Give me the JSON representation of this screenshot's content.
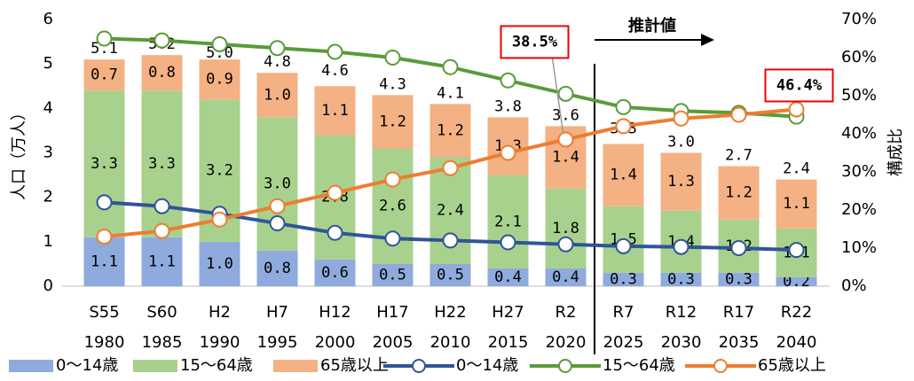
{
  "chart_data": {
    "type": "bar_line",
    "categories": [
      "S55",
      "S60",
      "H2",
      "H7",
      "H12",
      "H17",
      "H22",
      "H27",
      "R2",
      "R7",
      "R12",
      "R17",
      "R22"
    ],
    "years": [
      "1980",
      "1985",
      "1990",
      "1995",
      "2000",
      "2005",
      "2010",
      "2015",
      "2020",
      "2025",
      "2030",
      "2035",
      "2040"
    ],
    "y_label": "人口（万人）",
    "y2_label": "構成比",
    "projection_label": "推計値",
    "ylim": [
      0,
      6
    ],
    "yticks": [
      0,
      1,
      2,
      3,
      4,
      5,
      6
    ],
    "y2lim": [
      0,
      70
    ],
    "y2ticks": [
      {
        "value": 0,
        "label": "0%"
      },
      {
        "value": 10,
        "label": "10%"
      },
      {
        "value": 20,
        "label": "20%"
      },
      {
        "value": 30,
        "label": "30%"
      },
      {
        "value": 40,
        "label": "40%"
      },
      {
        "value": 50,
        "label": "50%"
      },
      {
        "value": 60,
        "label": "60%"
      },
      {
        "value": 70,
        "label": "70%"
      }
    ],
    "series": [
      {
        "name": "0～14歳",
        "type": "bar",
        "color": "#8faadc",
        "values": [
          1.1,
          1.1,
          1.0,
          0.8,
          0.6,
          0.5,
          0.5,
          0.4,
          0.4,
          0.3,
          0.3,
          0.3,
          0.2
        ],
        "value_labels": [
          "1.1",
          "1.1",
          "1.0",
          "0.8",
          "0.6",
          "0.5",
          "0.5",
          "0.4",
          "0.4",
          "0.3",
          "0.3",
          "0.3",
          "0.2"
        ]
      },
      {
        "name": "15～64歳",
        "type": "bar",
        "color": "#a9d18e",
        "values": [
          3.3,
          3.3,
          3.2,
          3.0,
          2.8,
          2.6,
          2.4,
          2.1,
          1.8,
          1.5,
          1.4,
          1.2,
          1.1
        ],
        "value_labels": [
          "3.3",
          "3.3",
          "3.2",
          "3.0",
          "2.8",
          "2.6",
          "2.4",
          "2.1",
          "1.8",
          "1.5",
          "1.4",
          "1.2",
          "1.1"
        ]
      },
      {
        "name": "65歳以上",
        "type": "bar",
        "color": "#f4b183",
        "values": [
          0.7,
          0.8,
          0.9,
          1.0,
          1.1,
          1.2,
          1.2,
          1.3,
          1.4,
          1.4,
          1.3,
          1.2,
          1.1
        ],
        "value_labels": [
          "0.7",
          "0.8",
          "0.9",
          "1.0",
          "1.1",
          "1.2",
          "1.2",
          "1.3",
          "1.4",
          "1.4",
          "1.3",
          "1.2",
          "1.1"
        ]
      },
      {
        "name": "0～14歳",
        "type": "line",
        "axis": "y2",
        "color": "#2f5597",
        "values": [
          22,
          21,
          19,
          16.5,
          14,
          12.5,
          12,
          11.5,
          11,
          10.5,
          10.3,
          10,
          9.5
        ]
      },
      {
        "name": "15～64歳",
        "type": "line",
        "axis": "y2",
        "color": "#5a9a3a",
        "values": [
          65,
          64.5,
          63.5,
          62.5,
          61.5,
          60,
          57.5,
          54,
          50.5,
          47,
          46,
          45.5,
          44.5
        ]
      },
      {
        "name": "65歳以上",
        "type": "line",
        "axis": "y2",
        "color": "#ed7d31",
        "values": [
          13,
          14.5,
          17.5,
          21,
          24.5,
          28,
          31,
          35,
          38.5,
          42,
          44,
          45,
          46.4
        ],
        "value_labels": [
          null,
          null,
          null,
          null,
          null,
          null,
          null,
          null,
          "38.5%",
          null,
          null,
          null,
          "46.4%"
        ]
      }
    ],
    "totals": [
      5.1,
      5.2,
      5.0,
      4.8,
      4.6,
      4.3,
      4.1,
      3.8,
      3.6,
      3.3,
      3.0,
      2.7,
      2.4
    ],
    "total_labels": [
      "5.1",
      "5.2",
      "5.0",
      "4.8",
      "4.6",
      "4.3",
      "4.1",
      "3.8",
      "3.6",
      "3.3",
      "3.0",
      "2.7",
      "2.4"
    ]
  }
}
